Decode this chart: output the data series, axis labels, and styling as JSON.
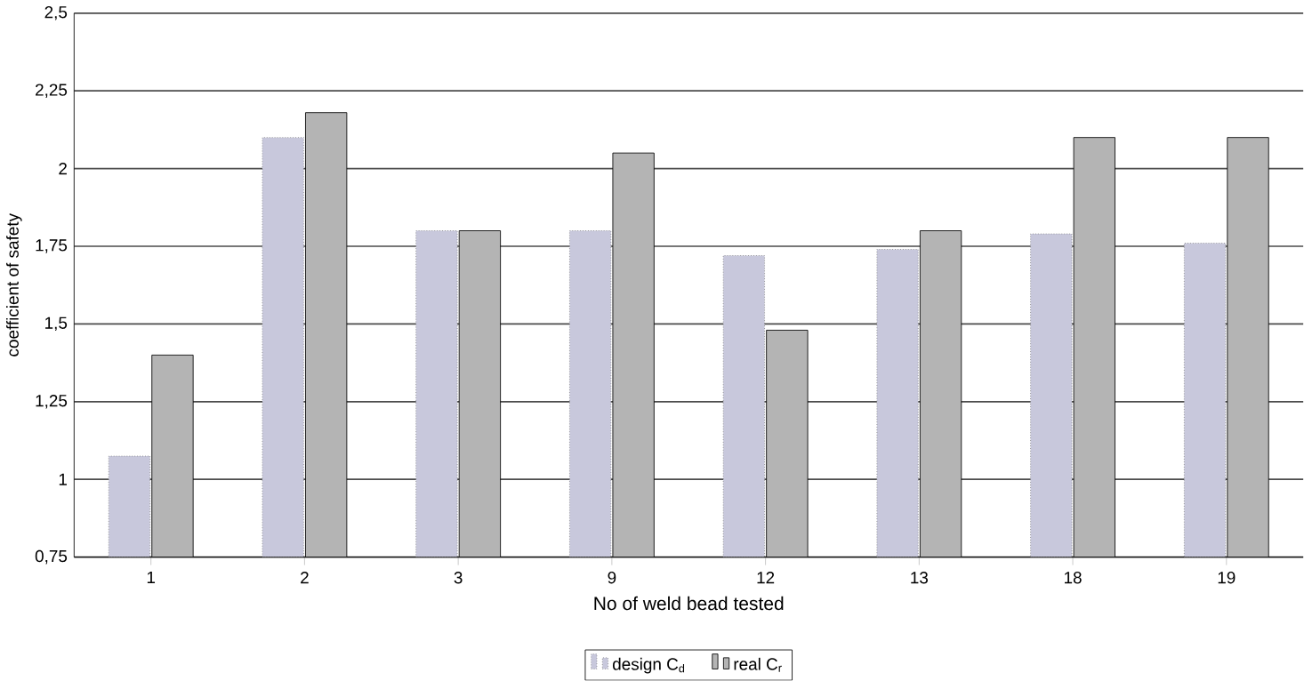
{
  "chart_data": {
    "type": "bar",
    "xlabel": "No of weld bead tested",
    "ylabel": "coefficient of safety",
    "categories": [
      "1",
      "2",
      "3",
      "9",
      "12",
      "13",
      "18",
      "19"
    ],
    "series": [
      {
        "name": "design C$_{d}$",
        "color": "#c8c8dc",
        "values": [
          1.075,
          2.1,
          1.8,
          1.8,
          1.72,
          1.74,
          1.79,
          1.76
        ]
      },
      {
        "name": "real C$_{r}$",
        "color": "#b4b4b4",
        "values": [
          1.4,
          2.18,
          1.8,
          2.05,
          1.48,
          1.8,
          2.1,
          2.1
        ]
      }
    ],
    "ylim": [
      0.75,
      2.5
    ],
    "yticks": [
      {
        "value": 0.75,
        "label": "0,75"
      },
      {
        "value": 1,
        "label": "1"
      },
      {
        "value": 1.25,
        "label": "1,25"
      },
      {
        "value": 1.5,
        "label": "1,5"
      },
      {
        "value": 1.75,
        "label": "1,75"
      },
      {
        "value": 2,
        "label": "2"
      },
      {
        "value": 2.25,
        "label": "2,25"
      },
      {
        "value": 2.5,
        "label": "2,5"
      }
    ],
    "grid": "y",
    "legend": "bottom"
  }
}
